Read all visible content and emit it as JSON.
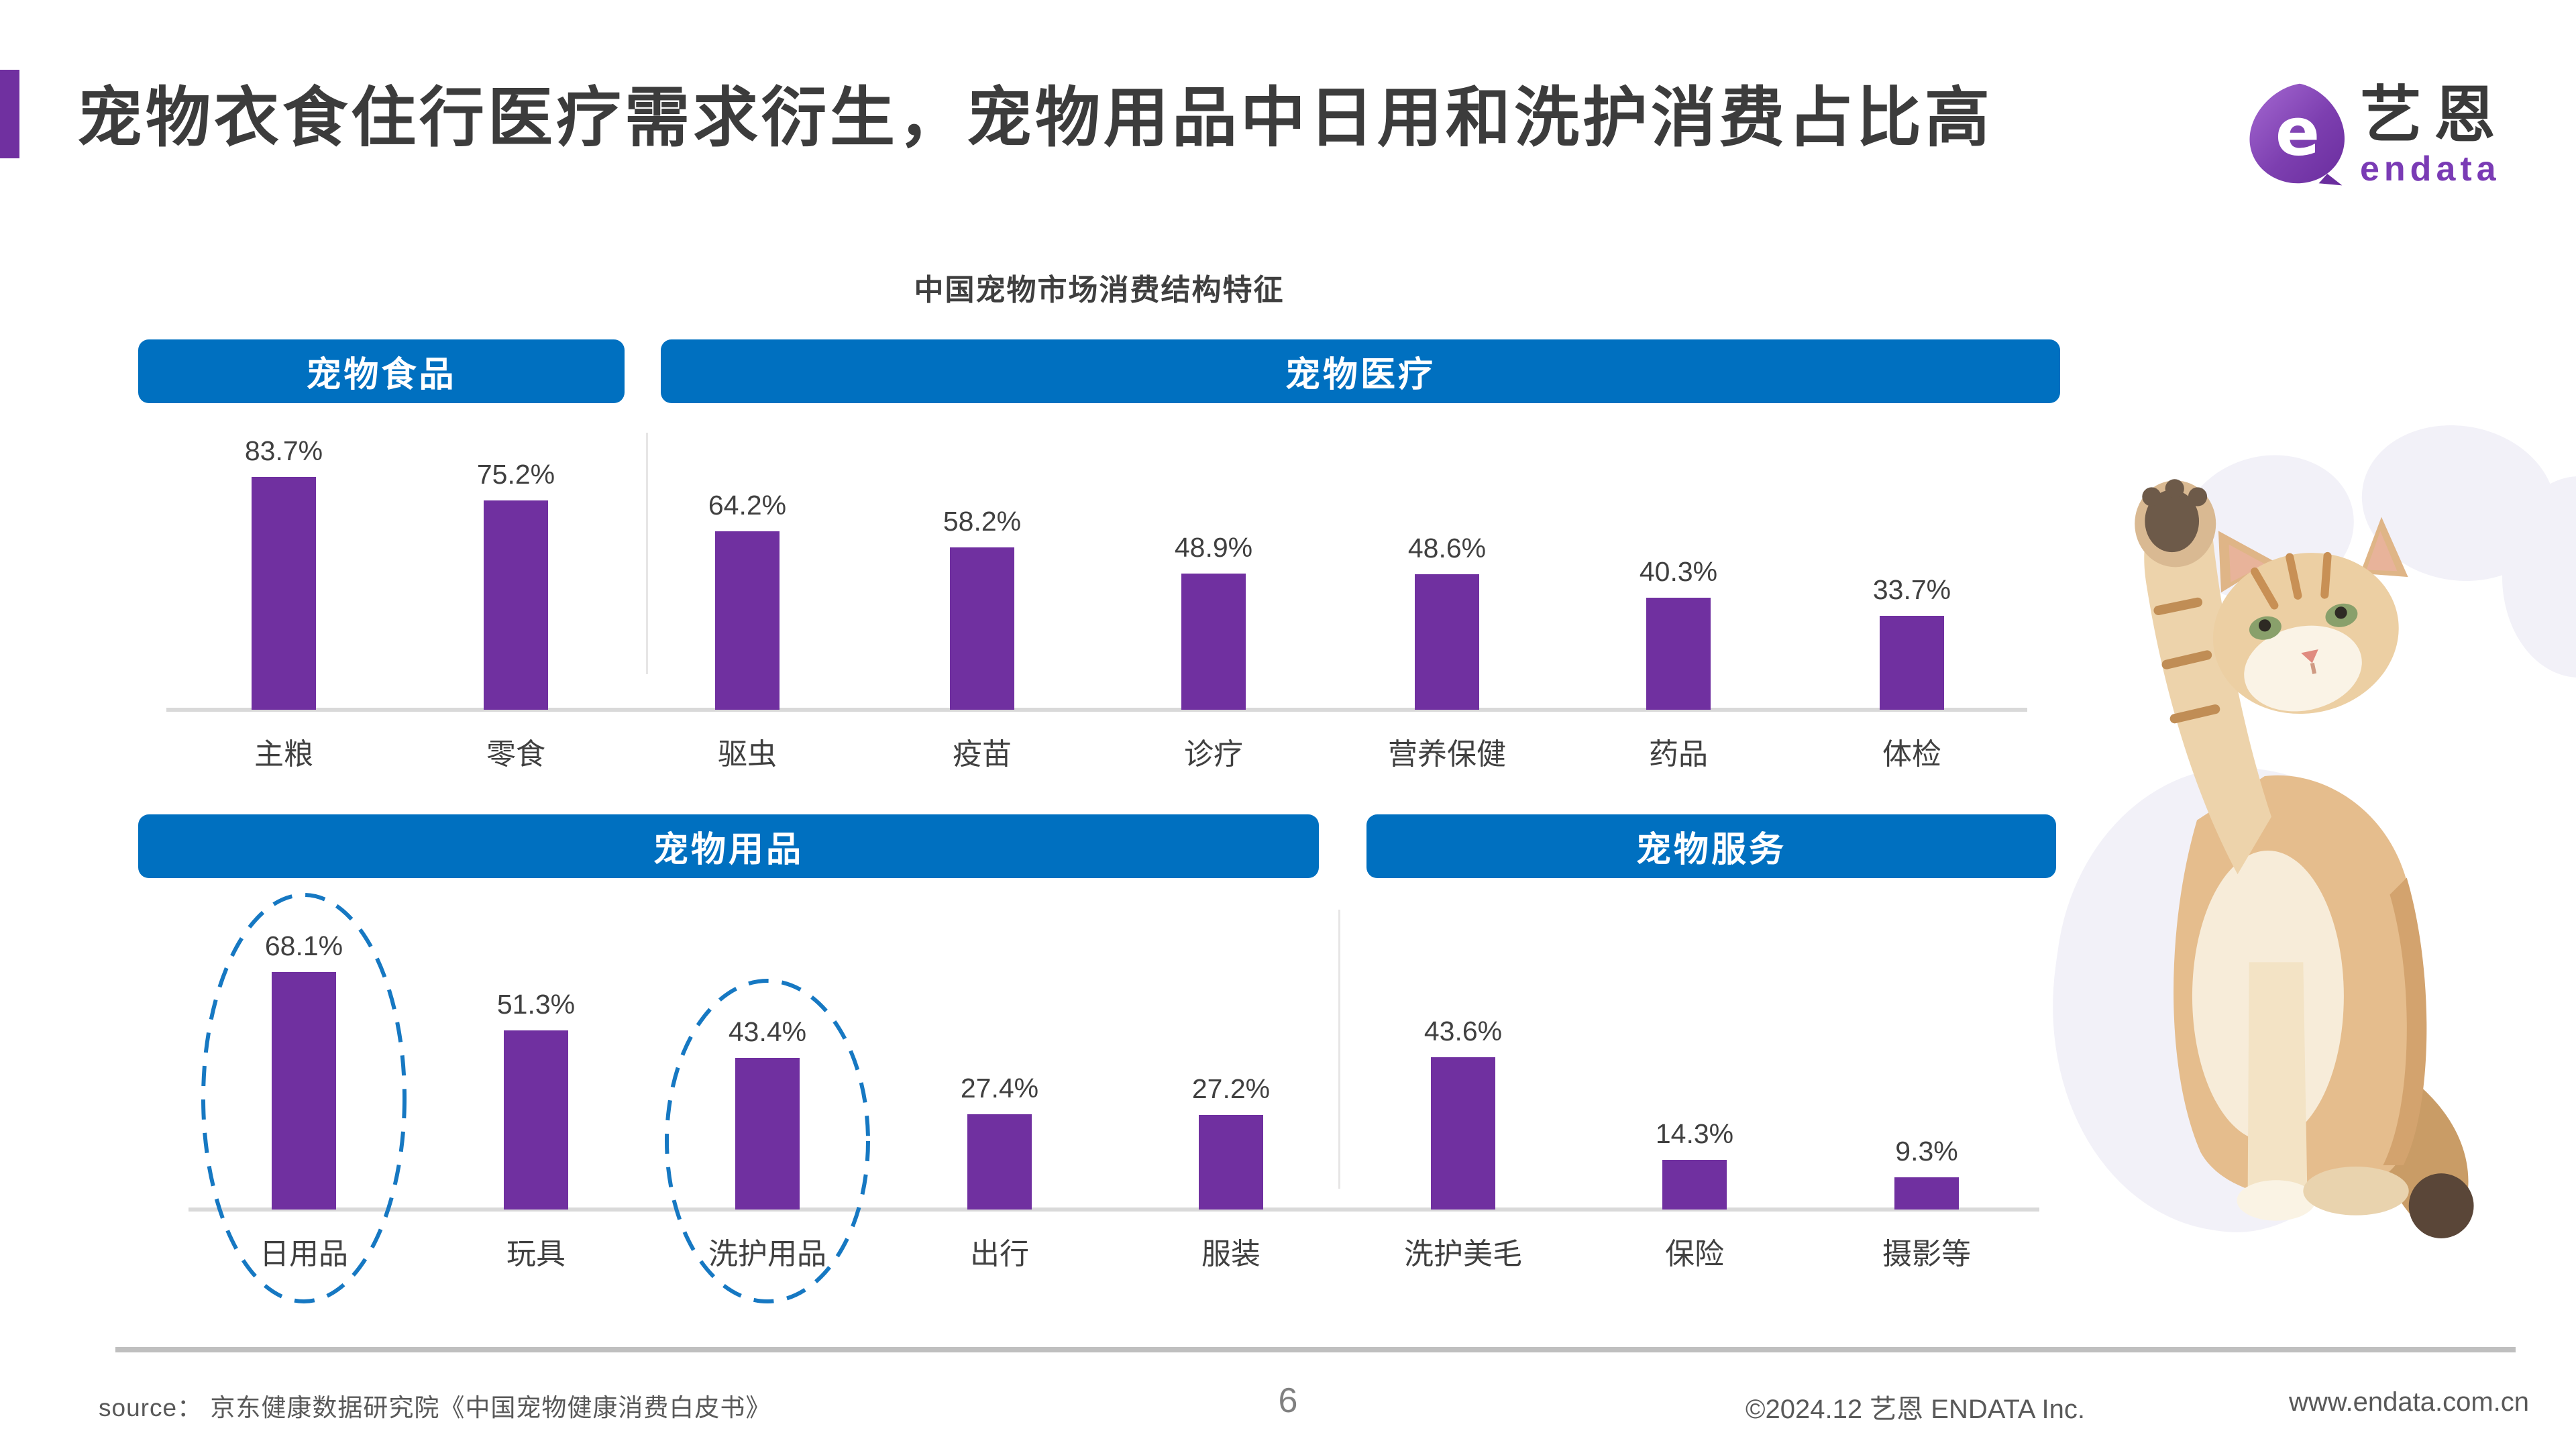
{
  "slide": {
    "title": "宠物衣食住行医疗需求衍生，宠物用品中日用和洗护消费占比高",
    "page_number": "6",
    "logo": {
      "mark": "e",
      "brand_cn": "艺恩",
      "brand_en": "endata"
    },
    "footer": {
      "source": "source： 京东健康数据研究院《中国宠物健康消费白皮书》",
      "copyright": "©2024.12  艺恩 ENDATA Inc.",
      "website": "www.endata.com.cn"
    },
    "colors": {
      "accent_purple": "#7030A0",
      "header_blue": "#0070C0",
      "bar_purple": "#7030A0",
      "highlight_circle_blue": "#1678C2",
      "title_gray": "#3c3c3c",
      "footer_gray": "#595959"
    }
  },
  "chart_data": {
    "type": "bar",
    "title": "中国宠物市场消费结构特征",
    "unit": "%",
    "value_range": [
      0,
      100
    ],
    "grid": false,
    "legend": "none",
    "groups": [
      {
        "name": "宠物食品",
        "categories": [
          "主粮",
          "零食"
        ],
        "values": [
          83.7,
          75.2
        ]
      },
      {
        "name": "宠物医疗",
        "categories": [
          "驱虫",
          "疫苗",
          "诊疗",
          "营养保健",
          "药品",
          "体检"
        ],
        "values": [
          64.2,
          58.2,
          48.9,
          48.6,
          40.3,
          33.7
        ]
      },
      {
        "name": "宠物用品",
        "categories": [
          "日用品",
          "玩具",
          "洗护用品",
          "出行",
          "服装"
        ],
        "values": [
          68.1,
          51.3,
          43.4,
          27.4,
          27.2
        ],
        "highlighted": [
          "日用品",
          "洗护用品"
        ]
      },
      {
        "name": "宠物服务",
        "categories": [
          "洗护美毛",
          "保险",
          "摄影等"
        ],
        "values": [
          43.6,
          14.3,
          9.3
        ]
      }
    ]
  }
}
